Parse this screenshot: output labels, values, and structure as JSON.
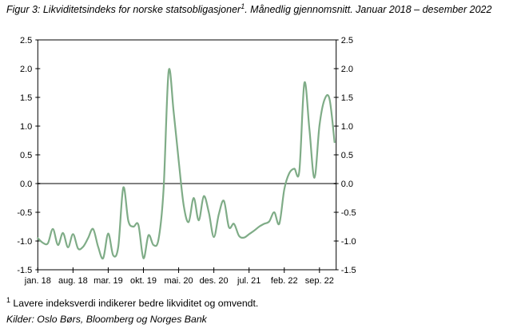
{
  "header": {
    "figure_label": "Figur 3: Likviditetsindeks for norske statsobligasjoner",
    "title_footnote_marker": "1",
    "title_rest": ". Månedlig gjennomsnitt. Januar 2018 – desember 2022"
  },
  "chart_data": {
    "type": "line",
    "title": "Likviditetsindeks for norske statsobligasjoner, månedlig gjennomsnitt, januar 2018 - desember 2022",
    "xlabel": "",
    "ylabel": "",
    "ylim": [
      -1.5,
      2.5
    ],
    "grid": false,
    "legend": "none",
    "zero_line": true,
    "zero_line_color": "#808080",
    "frame_color": "#000000",
    "y_tick_labels": [
      "2.5",
      "2.0",
      "1.5",
      "1.0",
      "0.5",
      "0.0",
      "-0.5",
      "-1.0",
      "-1.5"
    ],
    "x_tick_labels": [
      "jan. 18",
      "aug. 18",
      "mar. 19",
      "okt. 19",
      "mai. 20",
      "des. 20",
      "jul. 21",
      "feb. 22",
      "sep. 22"
    ],
    "x_tick_month_indices": [
      0,
      7,
      14,
      21,
      28,
      35,
      42,
      49,
      56
    ],
    "x": [
      "2018-01",
      "2018-02",
      "2018-03",
      "2018-04",
      "2018-05",
      "2018-06",
      "2018-07",
      "2018-08",
      "2018-09",
      "2018-10",
      "2018-11",
      "2018-12",
      "2019-01",
      "2019-02",
      "2019-03",
      "2019-04",
      "2019-05",
      "2019-06",
      "2019-07",
      "2019-08",
      "2019-09",
      "2019-10",
      "2019-11",
      "2019-12",
      "2020-01",
      "2020-02",
      "2020-03",
      "2020-04",
      "2020-05",
      "2020-06",
      "2020-07",
      "2020-08",
      "2020-09",
      "2020-10",
      "2020-11",
      "2020-12",
      "2021-01",
      "2021-02",
      "2021-03",
      "2021-04",
      "2021-05",
      "2021-06",
      "2021-07",
      "2021-08",
      "2021-09",
      "2021-10",
      "2021-11",
      "2021-12",
      "2022-01",
      "2022-02",
      "2022-03",
      "2022-04",
      "2022-05",
      "2022-06",
      "2022-07",
      "2022-08",
      "2022-09",
      "2022-10",
      "2022-11",
      "2022-12"
    ],
    "series": [
      {
        "name": "Likviditetsindeks",
        "color": "#7fac87",
        "values": [
          -0.95,
          -1.03,
          -1.04,
          -0.79,
          -1.07,
          -0.86,
          -1.11,
          -0.88,
          -1.13,
          -1.1,
          -0.95,
          -0.79,
          -1.1,
          -1.3,
          -0.87,
          -1.25,
          -1.1,
          -0.07,
          -0.65,
          -0.75,
          -0.72,
          -1.3,
          -0.9,
          -1.07,
          -0.97,
          -0.1,
          1.95,
          1.25,
          0.4,
          -0.38,
          -0.67,
          -0.25,
          -0.64,
          -0.22,
          -0.5,
          -0.93,
          -0.53,
          -0.3,
          -0.76,
          -0.7,
          -0.91,
          -0.94,
          -0.88,
          -0.82,
          -0.75,
          -0.7,
          -0.66,
          -0.5,
          -0.7,
          -0.1,
          0.18,
          0.26,
          0.22,
          1.75,
          0.95,
          0.1,
          1.01,
          1.46,
          1.47,
          0.72
        ]
      }
    ]
  },
  "footnote": {
    "marker": "1",
    "text": " Lavere indeksverdi indikerer bedre likviditet og omvendt."
  },
  "source": {
    "text": "Kilder: Oslo Børs, Bloomberg og Norges Bank"
  }
}
